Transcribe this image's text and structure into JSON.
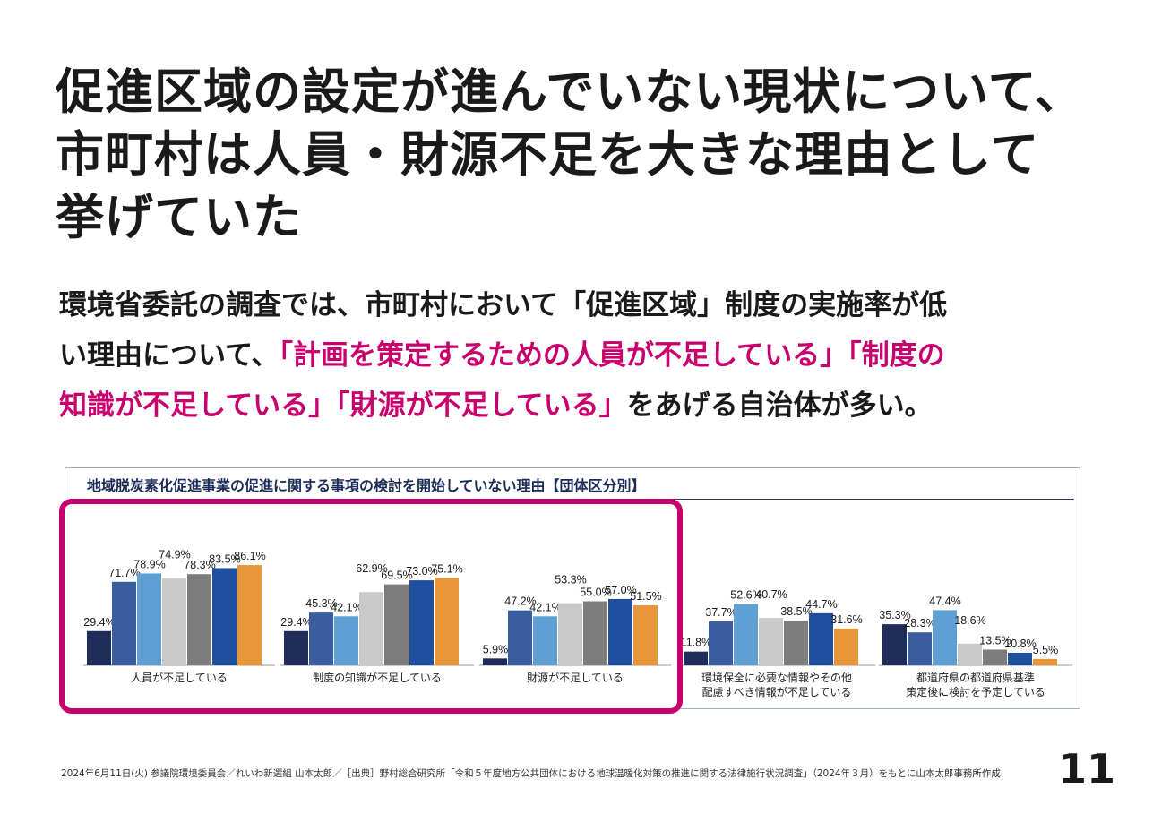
{
  "headline": {
    "lines": [
      "促進区域の設定が進んでいない現状について、",
      "市町村は人員・財源不足を大きな理由として",
      "挙げていた"
    ]
  },
  "lead": {
    "line1": "環境省委託の調査では、市町村において「促進区域」制度の実施率が低",
    "line2_plain": "い理由について、",
    "line2_pink": "「計画を策定するための人員が不足している」「制度の",
    "line3_pink": "知識が不足している」「財源が不足している」",
    "line3_plain": "をあげる自治体が多い。"
  },
  "colors": {
    "accent_pink": "#c8006e",
    "title_navy": "#1a2c56",
    "series": [
      "#1f2d5a",
      "#3a5da0",
      "#5fa0d4",
      "#c9c9c9",
      "#7c7c7c",
      "#1f4f9e",
      "#e8963a"
    ]
  },
  "chart_data": {
    "type": "bar",
    "title": "地域脱炭素化促進事業の促進に関する事項の検討を開始していない理由【団体区分別】",
    "categories": [
      "人員が不足している",
      "制度の知識が不足している",
      "財源が不足している",
      "環境保全に必要な情報やその他\n配慮すべき情報が不足している",
      "都道府県の都道府県基準\n策定後に検討を予定している"
    ],
    "series_count": 7,
    "values": [
      [
        29.4,
        71.7,
        78.9,
        74.9,
        78.3,
        83.5,
        86.1
      ],
      [
        29.4,
        45.3,
        42.1,
        62.9,
        69.5,
        73.0,
        75.1
      ],
      [
        5.9,
        47.2,
        42.1,
        53.3,
        55.0,
        57.0,
        51.5
      ],
      [
        11.8,
        37.7,
        52.6,
        40.7,
        38.5,
        44.7,
        31.6
      ],
      [
        35.3,
        28.3,
        47.4,
        18.6,
        13.5,
        10.8,
        5.5
      ]
    ],
    "value_labels": [
      [
        "29.4%",
        "71.7%",
        "78.9%",
        "74.9%",
        "78.3%",
        "83.5%",
        "86.1%"
      ],
      [
        "29.4%",
        "45.3%",
        "42.1%",
        "62.9%",
        "69.5%",
        "73.0%",
        "75.1%"
      ],
      [
        "5.9%",
        "47.2%",
        "42.1%",
        "53.3%",
        "55.0%",
        "57.0%",
        "51.5%"
      ],
      [
        "11.8%",
        "37.7%",
        "52.6%",
        "40.7%",
        "38.5%",
        "44.7%",
        "31.6%"
      ],
      [
        "35.3%",
        "28.3%",
        "47.4%",
        "18.6%",
        "13.5%",
        "10.8%",
        "5.5%"
      ]
    ],
    "ylim": [
      0,
      100
    ]
  },
  "footnote": "2024年6月11日(火) 参議院環境委員会／れいわ新選組 山本太郎／［出典］野村総合研究所「令和５年度地方公共団体における地球温暖化対策の推進に関する法律施行状況調査」（2024年３月）をもとに山本太郎事務所作成",
  "page_number": "11"
}
